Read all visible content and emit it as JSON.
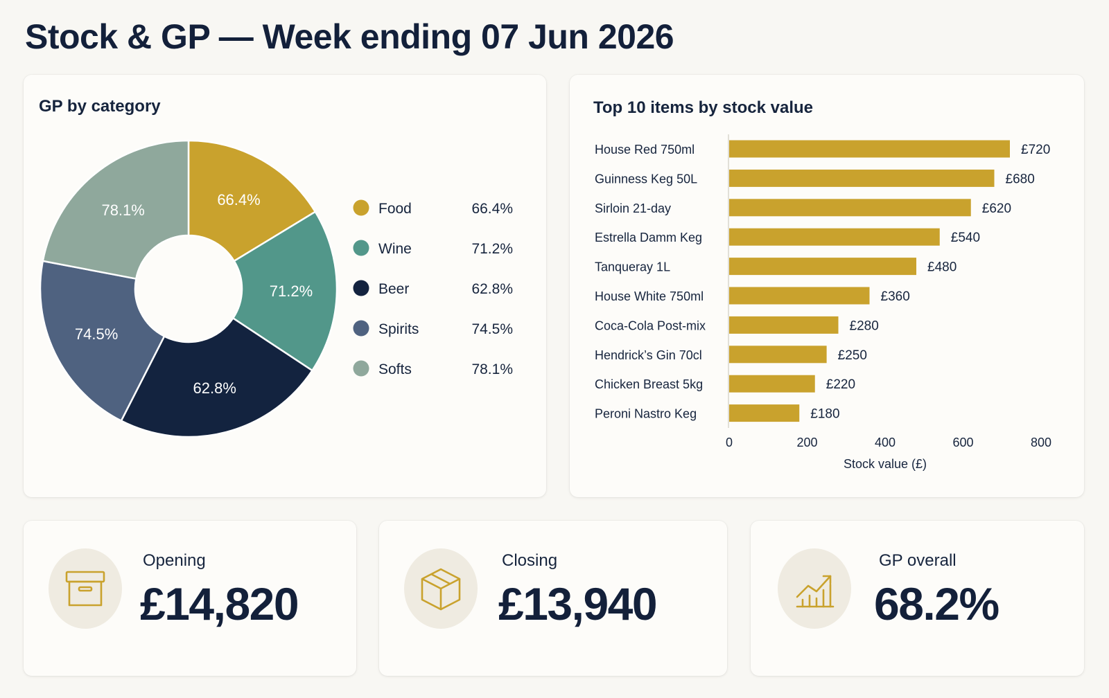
{
  "page": {
    "title": "Stock & GP — Week ending 07 Jun 2026"
  },
  "colors": {
    "accent_gold": "#C9A22D",
    "navy": "#13233F",
    "teal": "#52978A",
    "slate": "#4F6280",
    "sage": "#8FA89C",
    "icon_bg": "#EFEBE1"
  },
  "gp_by_category": {
    "title": "GP by category",
    "chart_data": {
      "type": "pie",
      "donut": true,
      "title": "GP by category",
      "slices": [
        {
          "name": "Food",
          "label": "66.4%",
          "value": 66.4,
          "share": 0.163,
          "color": "#C9A22D"
        },
        {
          "name": "Wine",
          "label": "71.2%",
          "value": 71.2,
          "share": 0.18,
          "color": "#52978A"
        },
        {
          "name": "Beer",
          "label": "62.8%",
          "value": 62.8,
          "share": 0.232,
          "color": "#13233F"
        },
        {
          "name": "Spirits",
          "label": "74.5%",
          "value": 74.5,
          "share": 0.205,
          "color": "#4F6280"
        },
        {
          "name": "Softs",
          "label": "78.1%",
          "value": 78.1,
          "share": 0.22,
          "color": "#8FA89C"
        }
      ],
      "legend_position": "right"
    }
  },
  "top_items": {
    "title": "Top 10 items by stock value",
    "chart_data": {
      "type": "bar",
      "orientation": "horizontal",
      "title": "Top 10 items by stock value",
      "categories": [
        "House Red 750ml",
        "Guinness Keg 50L",
        "Sirloin 21-day",
        "Estrella Damm Keg",
        "Tanqueray 1L",
        "House White 750ml",
        "Coca-Cola Post-mix",
        "Hendrick’s Gin 70cl",
        "Chicken Breast 5kg",
        "Peroni Nastro Keg"
      ],
      "values": [
        720,
        680,
        620,
        540,
        480,
        360,
        280,
        250,
        220,
        180
      ],
      "value_labels": [
        "£720",
        "£680",
        "£620",
        "£540",
        "£480",
        "£360",
        "£280",
        "£250",
        "£220",
        "£180"
      ],
      "xlabel": "Stock value (£)",
      "xlim": [
        0,
        800
      ],
      "xticks": [
        "0",
        "200",
        "400",
        "600",
        "800"
      ],
      "grid": false,
      "color": "#C9A22D"
    }
  },
  "kpis": {
    "opening": {
      "label": "Opening",
      "value": "£14,820",
      "icon": "archive-box-icon"
    },
    "closing": {
      "label": "Closing",
      "value": "£13,940",
      "icon": "package-cube-icon"
    },
    "gp_overall": {
      "label": "GP overall",
      "value": "68.2%",
      "icon": "trend-chart-icon"
    }
  }
}
